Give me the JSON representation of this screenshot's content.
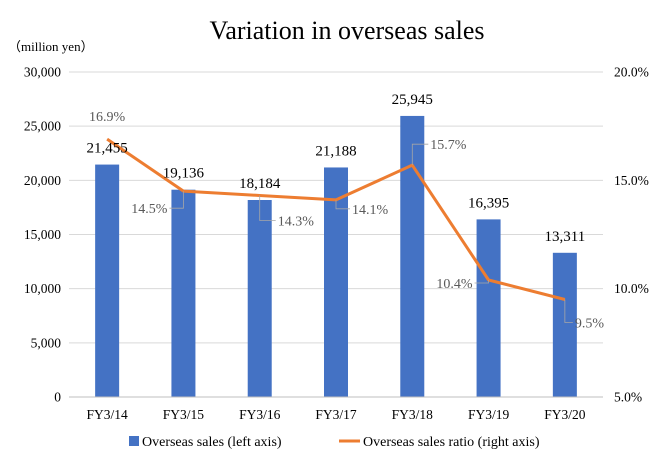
{
  "chart_data": {
    "type": "bar",
    "title": "Variation in overseas sales",
    "left_axis_unit": "（million yen）",
    "categories": [
      "FY3/14",
      "FY3/15",
      "FY3/16",
      "FY3/17",
      "FY3/18",
      "FY3/19",
      "FY3/20"
    ],
    "series": [
      {
        "name": "Overseas sales (left axis)",
        "type": "bar",
        "axis": "left",
        "color": "#4472C4",
        "values": [
          21455,
          19136,
          18184,
          21188,
          25945,
          16395,
          13311
        ],
        "labels": [
          "21,455",
          "19,136",
          "18,184",
          "21,188",
          "25,945",
          "16,395",
          "13,311"
        ]
      },
      {
        "name": "Overseas sales ratio (right axis)",
        "type": "line",
        "axis": "right",
        "color": "#ED7D31",
        "values": [
          16.9,
          14.5,
          14.3,
          14.1,
          15.7,
          10.4,
          9.5
        ],
        "labels": [
          "16.9%",
          "14.5%",
          "14.3%",
          "14.1%",
          "15.7%",
          "10.4%",
          "9.5%"
        ]
      }
    ],
    "left_axis": {
      "ylim": [
        0,
        30000
      ],
      "ticks": [
        0,
        5000,
        10000,
        15000,
        20000,
        25000,
        30000
      ],
      "tick_labels": [
        "0",
        "5,000",
        "10,000",
        "15,000",
        "20,000",
        "25,000",
        "30,000"
      ]
    },
    "right_axis": {
      "ylim": [
        5.0,
        20.0
      ],
      "ticks": [
        5.0,
        10.0,
        15.0,
        20.0
      ],
      "tick_labels": [
        "5.0%",
        "10.0%",
        "15.0%",
        "20.0%"
      ]
    },
    "grid": true,
    "legend_position": "bottom"
  }
}
